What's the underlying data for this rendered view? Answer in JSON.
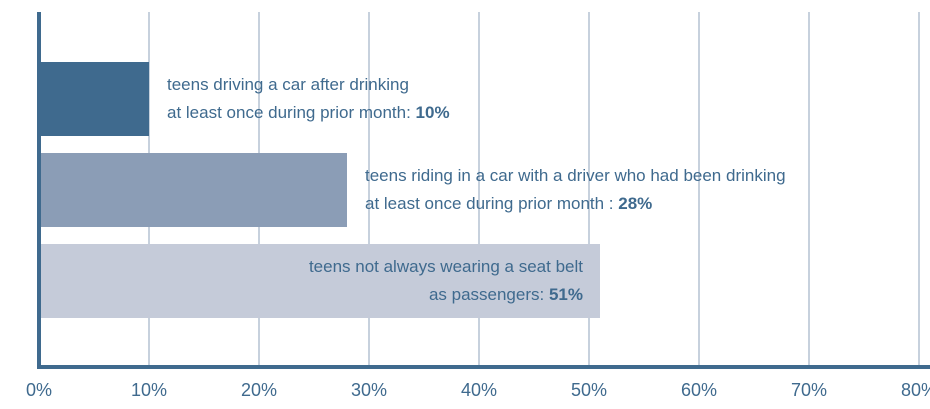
{
  "chart_data": {
    "type": "bar",
    "orientation": "horizontal",
    "categories": [
      [
        "teens driving a car after drinking",
        "at least once during prior month:"
      ],
      [
        "teens riding in a car with a driver who had been drinking",
        "at least once during prior month :"
      ],
      [
        "teens not always wearing a seat belt",
        "as passengers:"
      ]
    ],
    "values": [
      10,
      28,
      51
    ],
    "value_labels": [
      "10%",
      "28%",
      "51%"
    ],
    "colors": [
      "#3f6a8e",
      "#8b9db6",
      "#c5cbd9"
    ],
    "xlim": [
      0,
      80
    ],
    "xticks": [
      {
        "value": 0,
        "label": "0%"
      },
      {
        "value": 10,
        "label": "10%"
      },
      {
        "value": 20,
        "label": "20%"
      },
      {
        "value": 30,
        "label": "30%"
      },
      {
        "value": 40,
        "label": "40%"
      },
      {
        "value": 50,
        "label": "50%"
      },
      {
        "value": 60,
        "label": "60%"
      },
      {
        "value": 70,
        "label": "70%"
      },
      {
        "value": 80,
        "label": "80%"
      }
    ],
    "grid": true
  }
}
